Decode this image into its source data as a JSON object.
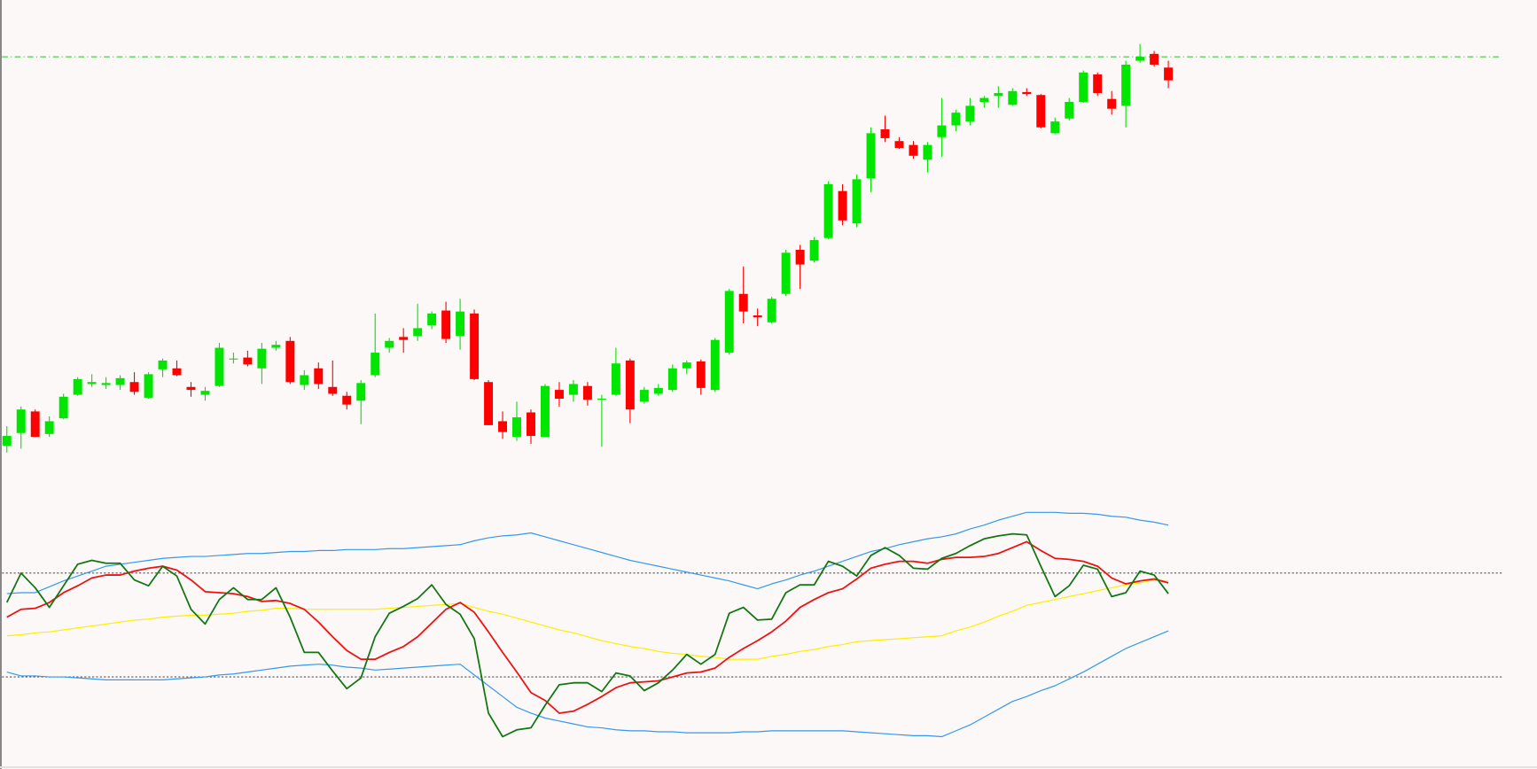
{
  "chart_data": [
    {
      "type": "candlestick",
      "ylim": [
        0,
        500
      ],
      "level": 442,
      "level_color": "#22c322",
      "up_color": "#00e600",
      "down_color": "#ff0000",
      "open": [
        45,
        58,
        80,
        57,
        73,
        97,
        108,
        107,
        107,
        110,
        94,
        123,
        124,
        105,
        97,
        106,
        133,
        135,
        124,
        145,
        152,
        107,
        124,
        105,
        96,
        91,
        117,
        145,
        156,
        157,
        168,
        183,
        157,
        180,
        110,
        70,
        54,
        79,
        54,
        102,
        97,
        106,
        92,
        97,
        132,
        90,
        98,
        102,
        124,
        131,
        102,
        140,
        200,
        178,
        171,
        200,
        245,
        234,
        257,
        305,
        272,
        318,
        368,
        356,
        352,
        337,
        360,
        372,
        376,
        396,
        402,
        393,
        406,
        403,
        364,
        379,
        396,
        424,
        399,
        392,
        438,
        445,
        431
      ],
      "high": [
        65,
        85,
        82,
        75,
        98,
        115,
        118,
        115,
        117,
        120,
        120,
        134,
        132,
        110,
        105,
        150,
        140,
        142,
        150,
        152,
        156,
        122,
        130,
        132,
        100,
        112,
        180,
        155,
        165,
        190,
        182,
        192,
        195,
        184,
        112,
        80,
        90,
        82,
        108,
        110,
        112,
        110,
        97,
        145,
        134,
        105,
        108,
        128,
        132,
        133,
        155,
        205,
        228,
        185,
        197,
        245,
        250,
        258,
        315,
        312,
        322,
        370,
        382,
        360,
        356,
        355,
        400,
        388,
        400,
        402,
        412,
        410,
        410,
        404,
        380,
        400,
        428,
        426,
        407,
        438,
        455,
        448,
        438
      ],
      "low": [
        38,
        42,
        54,
        54,
        72,
        96,
        105,
        103,
        102,
        97,
        93,
        115,
        116,
        95,
        91,
        105,
        129,
        126,
        108,
        142,
        108,
        102,
        103,
        96,
        82,
        67,
        115,
        140,
        140,
        152,
        164,
        150,
        143,
        112,
        66,
        52,
        50,
        47,
        54,
        85,
        90,
        86,
        44,
        96,
        68,
        88,
        96,
        100,
        118,
        97,
        100,
        138,
        170,
        167,
        170,
        198,
        205,
        232,
        256,
        270,
        268,
        304,
        355,
        348,
        338,
        324,
        340,
        366,
        372,
        390,
        390,
        392,
        402,
        369,
        363,
        377,
        395,
        402,
        383,
        370,
        436,
        432,
        410
      ],
      "close": [
        55,
        82,
        54,
        70,
        95,
        113,
        110,
        109,
        114,
        100,
        118,
        132,
        117,
        102,
        101,
        145,
        134,
        128,
        144,
        148,
        110,
        117,
        108,
        98,
        87,
        109,
        140,
        152,
        153,
        165,
        180,
        154,
        182,
        113,
        66,
        59,
        74,
        55,
        106,
        93,
        108,
        92,
        93,
        129,
        82,
        102,
        104,
        124,
        130,
        104,
        153,
        203,
        182,
        176,
        195,
        242,
        230,
        255,
        312,
        275,
        317,
        364,
        359,
        349,
        341,
        352,
        372,
        385,
        392,
        400,
        405,
        407,
        404,
        370,
        376,
        396,
        426,
        405,
        389,
        434,
        442,
        434,
        418
      ]
    },
    {
      "type": "line",
      "ylim": [
        0,
        265
      ],
      "levels": [
        79,
        185
      ],
      "level_color": "#555555",
      "series": [
        {
          "color": "#3399ee",
          "values": [
            164,
            165,
            165,
            171,
            177,
            182,
            187,
            192,
            194,
            196,
            198,
            200,
            201,
            202,
            202,
            203,
            204,
            205,
            205,
            206,
            207,
            207,
            208,
            208,
            209,
            209,
            209,
            210,
            210,
            211,
            212,
            213,
            214,
            218,
            221,
            223,
            224,
            226,
            222,
            218,
            214,
            210,
            206,
            202,
            198,
            195,
            192,
            189,
            186,
            183,
            180,
            177,
            173,
            169,
            174,
            178,
            183,
            187,
            192,
            197,
            202,
            207,
            210,
            214,
            217,
            220,
            222,
            225,
            230,
            234,
            239,
            243,
            247,
            247,
            247,
            246,
            246,
            245,
            243,
            242,
            239,
            237,
            234
          ]
        },
        {
          "color": "#3399ee",
          "values": [
            84,
            80,
            80,
            79,
            79,
            78,
            77,
            76,
            76,
            76,
            76,
            76,
            77,
            78,
            79,
            81,
            82,
            84,
            86,
            88,
            90,
            91,
            92,
            91,
            89,
            88,
            86,
            87,
            88,
            89,
            90,
            91,
            92,
            81,
            70,
            59,
            48,
            42,
            37,
            34,
            31,
            28,
            27,
            25,
            24,
            24,
            23,
            23,
            22,
            22,
            22,
            22,
            23,
            23,
            24,
            24,
            24,
            24,
            24,
            24,
            23,
            22,
            21,
            20,
            19,
            19,
            18,
            24,
            30,
            38,
            46,
            54,
            59,
            65,
            70,
            77,
            84,
            92,
            100,
            108,
            114,
            120,
            126
          ]
        },
        {
          "color": "#ffee00",
          "values": [
            121,
            122,
            124,
            125,
            127,
            129,
            131,
            133,
            135,
            137,
            138,
            140,
            141,
            142,
            142,
            143,
            144,
            146,
            147,
            149,
            149,
            148,
            148,
            148,
            148,
            148,
            148,
            149,
            150,
            151,
            152,
            153,
            154,
            150,
            146,
            143,
            139,
            135,
            131,
            127,
            124,
            120,
            116,
            113,
            110,
            108,
            105,
            103,
            102,
            100,
            99,
            97,
            97,
            97,
            100,
            102,
            105,
            107,
            110,
            112,
            115,
            116,
            117,
            118,
            119,
            120,
            121,
            126,
            130,
            135,
            141,
            146,
            152,
            155,
            158,
            161,
            164,
            167,
            170,
            173,
            175,
            178,
            177
          ]
        },
        {
          "color": "#ee1111",
          "values": [
            140,
            148,
            149,
            155,
            165,
            172,
            180,
            183,
            183,
            187,
            190,
            192,
            188,
            178,
            166,
            165,
            164,
            161,
            156,
            157,
            154,
            148,
            135,
            120,
            106,
            97,
            97,
            104,
            110,
            120,
            134,
            148,
            155,
            145,
            125,
            104,
            84,
            63,
            55,
            42,
            44,
            51,
            59,
            68,
            73,
            74,
            75,
            79,
            83,
            84,
            88,
            99,
            108,
            116,
            125,
            136,
            150,
            158,
            165,
            169,
            179,
            190,
            194,
            197,
            197,
            195,
            199,
            201,
            201,
            202,
            205,
            211,
            217,
            208,
            200,
            199,
            197,
            192,
            180,
            174,
            177,
            179,
            175
          ]
        },
        {
          "color": "#117711",
          "values": [
            155,
            185,
            170,
            150,
            172,
            194,
            198,
            195,
            195,
            178,
            172,
            192,
            182,
            148,
            133,
            158,
            170,
            158,
            158,
            170,
            140,
            104,
            104,
            85,
            67,
            78,
            120,
            144,
            151,
            159,
            173,
            153,
            143,
            118,
            42,
            18,
            25,
            27,
            50,
            71,
            73,
            73,
            64,
            83,
            80,
            65,
            73,
            86,
            102,
            92,
            102,
            144,
            150,
            137,
            138,
            165,
            173,
            173,
            197,
            192,
            182,
            203,
            211,
            203,
            190,
            189,
            200,
            205,
            213,
            220,
            223,
            225,
            224,
            192,
            161,
            172,
            193,
            189,
            161,
            165,
            187,
            183,
            164
          ]
        }
      ]
    }
  ]
}
